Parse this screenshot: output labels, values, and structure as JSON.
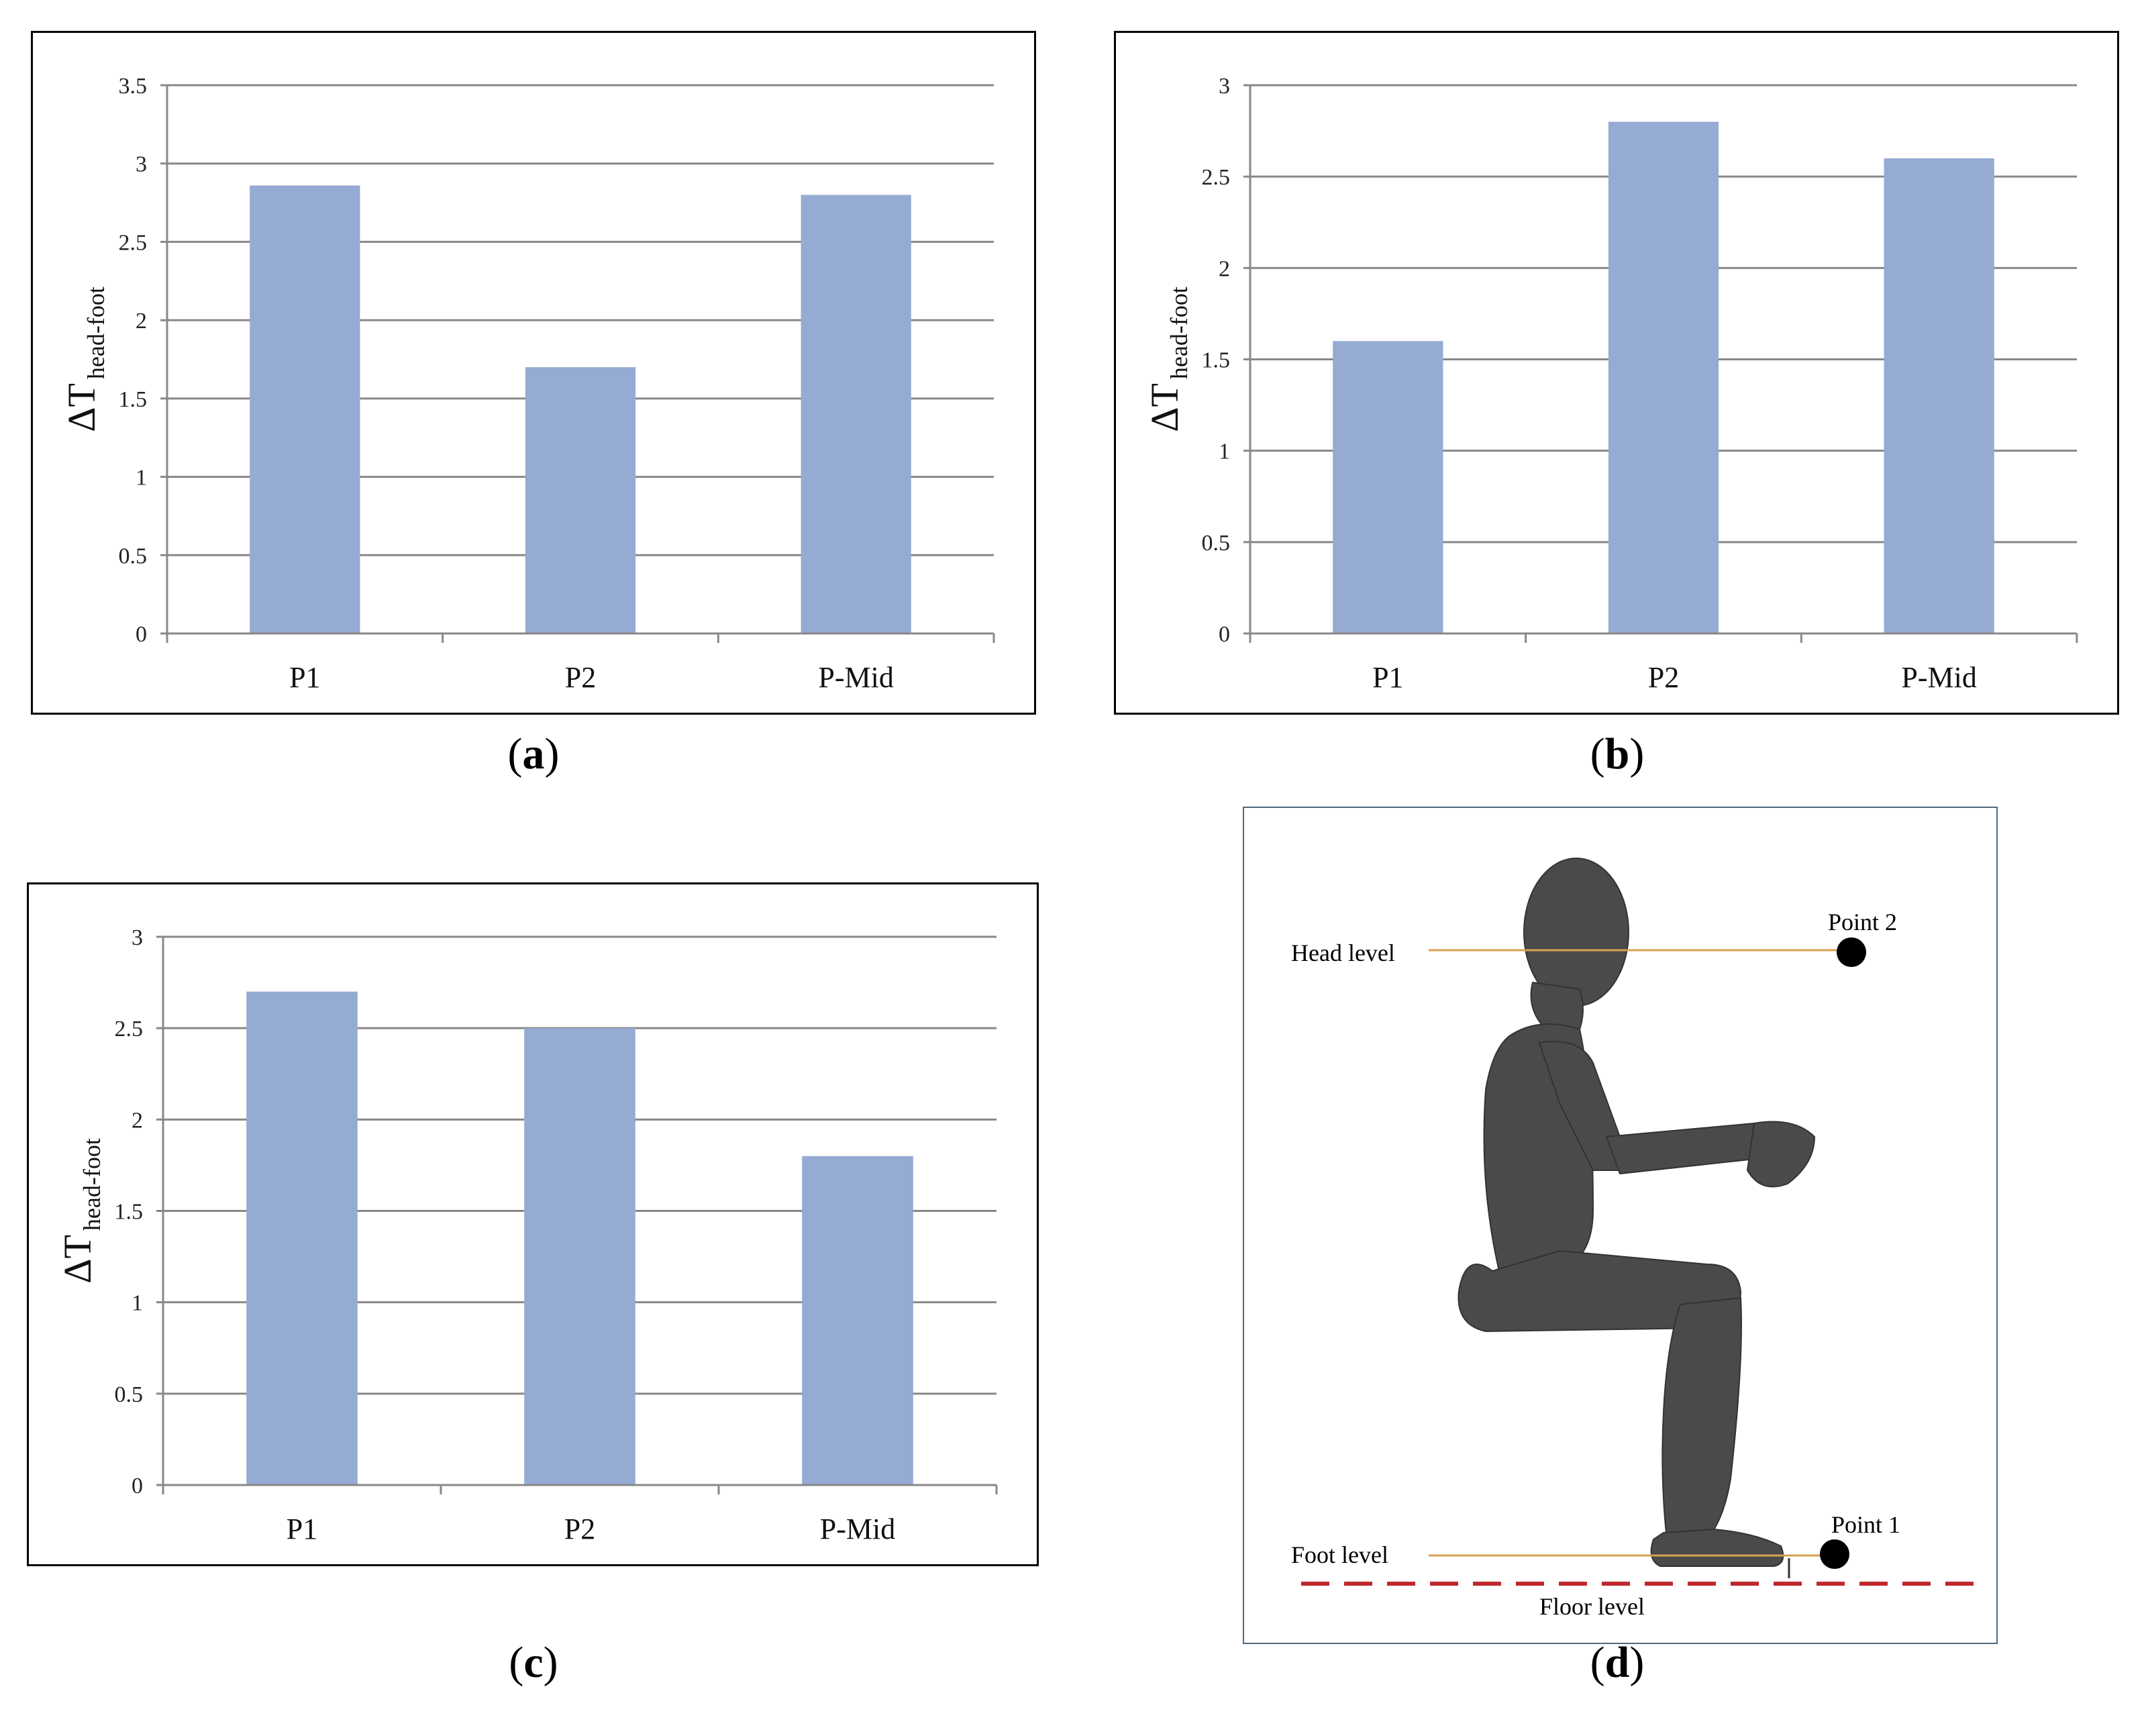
{
  "chart_data": [
    {
      "type": "bar",
      "categories": [
        "P1",
        "P2",
        "P-Mid"
      ],
      "values": [
        2.86,
        1.7,
        2.8
      ],
      "ylim": [
        0,
        3.5
      ],
      "yticks": [
        0,
        0.5,
        1,
        1.5,
        2,
        2.5,
        3,
        3.5
      ],
      "ylabel": "ΔT",
      "ylabel_sub": "head-foot",
      "bar_color": "#95abd3",
      "grid": true,
      "panel_label": "a"
    },
    {
      "type": "bar",
      "categories": [
        "P1",
        "P2",
        "P-Mid"
      ],
      "values": [
        1.6,
        2.8,
        2.6
      ],
      "ylim": [
        0,
        3
      ],
      "yticks": [
        0,
        0.5,
        1,
        1.5,
        2,
        2.5,
        3
      ],
      "ylabel": "ΔT",
      "ylabel_sub": "head-foot",
      "bar_color": "#95abd3",
      "grid": true,
      "panel_label": "b"
    },
    {
      "type": "bar",
      "categories": [
        "P1",
        "P2",
        "P-Mid"
      ],
      "values": [
        2.7,
        2.5,
        1.8
      ],
      "ylim": [
        0,
        3
      ],
      "yticks": [
        0,
        0.5,
        1,
        1.5,
        2,
        2.5,
        3
      ],
      "ylabel": "ΔT",
      "ylabel_sub": "head-foot",
      "bar_color": "#95abd3",
      "grid": true,
      "panel_label": "c"
    }
  ],
  "diagram": {
    "panel_label": "d",
    "head_level": "Head level",
    "foot_level": "Foot level",
    "floor_level": "Floor level",
    "point2": "Point 2",
    "point1": "Point 1",
    "line_color": "#d9a052",
    "floor_color": "#c0282c",
    "figure_color": "#4a4a4a"
  },
  "paren_open": "(",
  "paren_close": ")"
}
